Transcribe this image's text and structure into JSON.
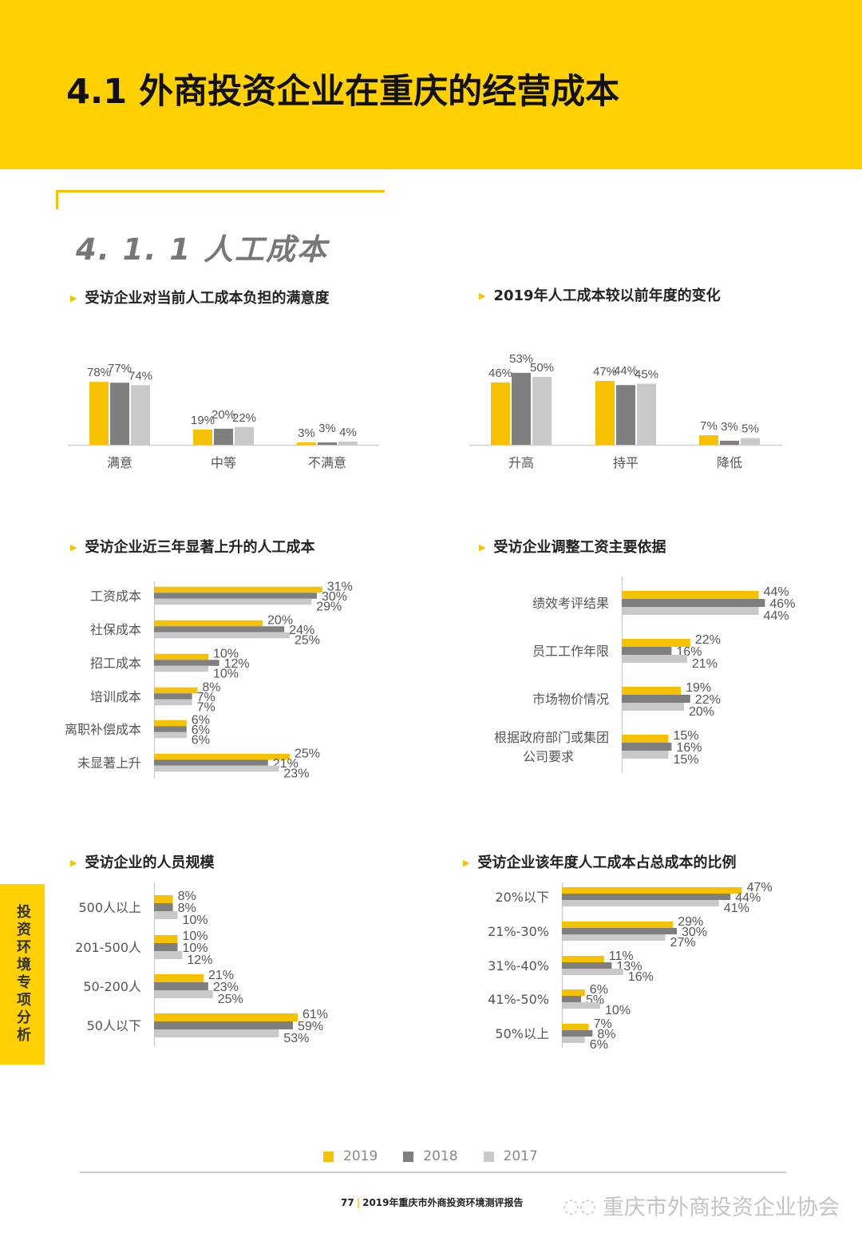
{
  "header": {
    "title": "4.1 外商投资企业在重庆的经营成本"
  },
  "section": {
    "title": "4. 1. 1  人工成本"
  },
  "side_tab": {
    "label": "投资环境专项分析"
  },
  "colors": {
    "2019": "#F5C100",
    "2018": "#7F7F7F",
    "2017": "#C9C9C9",
    "accent": "#FFD100"
  },
  "legend": [
    {
      "label": "2019",
      "color": "#F5C100"
    },
    {
      "label": "2018",
      "color": "#7F7F7F"
    },
    {
      "label": "2017",
      "color": "#C9C9C9"
    }
  ],
  "chart_data": [
    {
      "id": "satisfaction",
      "type": "bar",
      "orientation": "vertical",
      "title": "受访企业对当前人工成本负担的满意度",
      "categories": [
        "满意",
        "中等",
        "不满意"
      ],
      "series": [
        {
          "name": "2019",
          "values": [
            78,
            19,
            3
          ]
        },
        {
          "name": "2018",
          "values": [
            77,
            20,
            3
          ]
        },
        {
          "name": "2017",
          "values": [
            74,
            22,
            4
          ]
        }
      ]
    },
    {
      "id": "change2019",
      "type": "bar",
      "orientation": "vertical",
      "title": "2019年人工成本较以前年度的变化",
      "categories": [
        "升高",
        "持平",
        "降低"
      ],
      "series": [
        {
          "name": "2019",
          "values": [
            46,
            47,
            7
          ]
        },
        {
          "name": "2018",
          "values": [
            53,
            44,
            3
          ]
        },
        {
          "name": "2017",
          "values": [
            50,
            45,
            5
          ]
        }
      ]
    },
    {
      "id": "rising",
      "type": "bar",
      "orientation": "horizontal",
      "title": "受访企业近三年显著上升的人工成本",
      "categories": [
        "工资成本",
        "社保成本",
        "招工成本",
        "培训成本",
        "离职补偿成本",
        "未显著上升"
      ],
      "series": [
        {
          "name": "2019",
          "values": [
            31,
            20,
            10,
            8,
            6,
            25
          ]
        },
        {
          "name": "2018",
          "values": [
            30,
            24,
            12,
            7,
            6,
            21
          ]
        },
        {
          "name": "2017",
          "values": [
            29,
            25,
            10,
            7,
            6,
            23
          ]
        }
      ]
    },
    {
      "id": "wagebasis",
      "type": "bar",
      "orientation": "horizontal",
      "title": "受访企业调整工资主要依据",
      "categories": [
        "绩效考评结果",
        "员工工作年限",
        "市场物价情况",
        "根据政府部门或集团\n公司要求"
      ],
      "series": [
        {
          "name": "2019",
          "values": [
            44,
            22,
            19,
            15
          ]
        },
        {
          "name": "2018",
          "values": [
            46,
            16,
            22,
            16
          ]
        },
        {
          "name": "2017",
          "values": [
            44,
            21,
            20,
            15
          ]
        }
      ]
    },
    {
      "id": "headcount",
      "type": "bar",
      "orientation": "horizontal",
      "title": "受访企业的人员规模",
      "categories": [
        "500人以上",
        "201-500人",
        "50-200人",
        "50人以下"
      ],
      "series": [
        {
          "name": "2019",
          "values": [
            8,
            10,
            21,
            61
          ]
        },
        {
          "name": "2018",
          "values": [
            8,
            10,
            23,
            59
          ]
        },
        {
          "name": "2017",
          "values": [
            10,
            12,
            25,
            53
          ]
        }
      ]
    },
    {
      "id": "costshare",
      "type": "bar",
      "orientation": "horizontal",
      "title": "受访企业该年度人工成本占总成本的比例",
      "categories": [
        "20%以下",
        "21%-30%",
        "31%-40%",
        "41%-50%",
        "50%以上"
      ],
      "series": [
        {
          "name": "2019",
          "values": [
            47,
            29,
            11,
            6,
            7
          ]
        },
        {
          "name": "2018",
          "values": [
            44,
            30,
            13,
            5,
            8
          ]
        },
        {
          "name": "2017",
          "values": [
            41,
            27,
            16,
            10,
            6
          ]
        }
      ]
    }
  ],
  "footer": {
    "page": "77",
    "report": "2019年重庆市外商投资环境测评报告",
    "watermark": "重庆市外商投资企业协会"
  }
}
